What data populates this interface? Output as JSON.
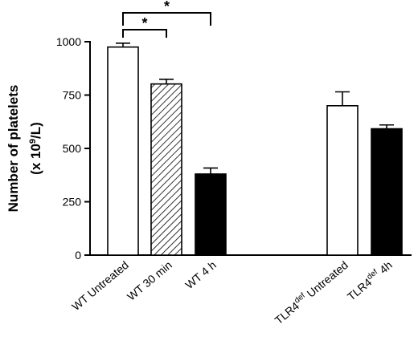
{
  "chart_data": {
    "type": "bar",
    "ylabel_line1": "Number of platelets",
    "ylabel_line2_prefix": "(x 10",
    "ylabel_line2_sup": "9",
    "ylabel_line2_suffix": "/L)",
    "ylim": [
      0,
      1000
    ],
    "yticks": [
      0,
      250,
      500,
      750,
      1000
    ],
    "ytick_labels": [
      "0",
      "250",
      "500",
      "750",
      "1000"
    ],
    "grid": false,
    "categories": [
      {
        "label": "WT Untreated",
        "value": 975,
        "error": 18,
        "fill": "white"
      },
      {
        "label": "WT 30 min",
        "value": 802,
        "error": 22,
        "fill": "hatched"
      },
      {
        "label": "WT 4 h",
        "value": 380,
        "error": 28,
        "fill": "black"
      },
      {
        "label_base": "TLR4",
        "label_sup": "def",
        "label_rest": " Untreated",
        "value": 700,
        "error": 65,
        "fill": "white"
      },
      {
        "label_base": "TLR4",
        "label_sup": "def",
        "label_rest": " 4h",
        "value": 592,
        "error": 18,
        "fill": "black"
      }
    ],
    "significance": [
      {
        "from": "WT Untreated",
        "to": "WT 30 min",
        "label": "*"
      },
      {
        "from": "WT Untreated",
        "to": "WT 4 h",
        "label": "*"
      }
    ]
  }
}
